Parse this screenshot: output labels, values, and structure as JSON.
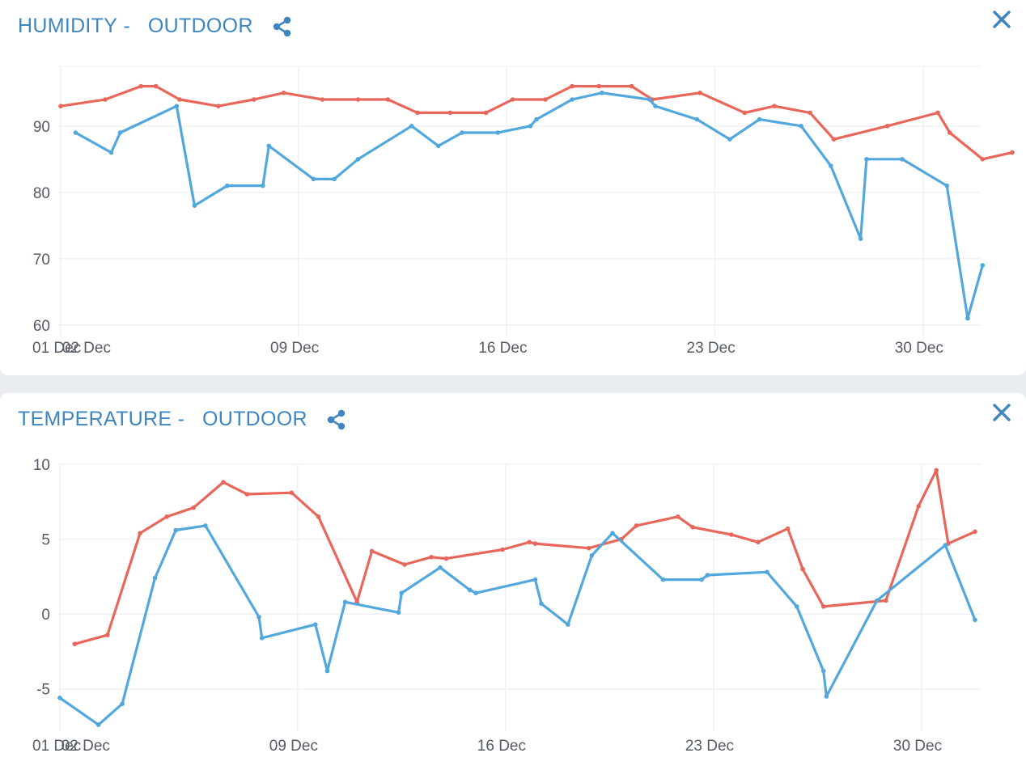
{
  "colors": {
    "accent": "#3f86c1",
    "series_a": "#e8665a",
    "series_b": "#52a8dc"
  },
  "icons": {
    "share": "share-icon",
    "close": "close-icon"
  },
  "chart_data": [
    {
      "id": "humidity",
      "type": "line",
      "header": {
        "metric": "HUMIDITY",
        "separator": " -   ",
        "location": "OUTDOOR"
      },
      "x_ticks": [
        {
          "label": "01 Dec",
          "day": 1
        },
        {
          "label": "02 Dec",
          "day": 2
        },
        {
          "label": "09 Dec",
          "day": 9
        },
        {
          "label": "16 Dec",
          "day": 16
        },
        {
          "label": "23 Dec",
          "day": 23
        },
        {
          "label": "30 Dec",
          "day": 30
        }
      ],
      "y_ticks": [
        60,
        70,
        80,
        90
      ],
      "ylim": [
        59,
        99
      ],
      "xlim_days": [
        1,
        33.2
      ],
      "series": [
        {
          "color": "#e8665a",
          "points": [
            [
              1.0,
              93
            ],
            [
              2.5,
              94
            ],
            [
              3.7,
              96
            ],
            [
              4.2,
              96
            ],
            [
              5.0,
              94
            ],
            [
              6.3,
              93
            ],
            [
              7.5,
              94
            ],
            [
              8.5,
              95
            ],
            [
              9.8,
              94
            ],
            [
              11.0,
              94
            ],
            [
              12.0,
              94
            ],
            [
              13.0,
              92
            ],
            [
              14.1,
              92
            ],
            [
              15.3,
              92
            ],
            [
              16.2,
              94
            ],
            [
              17.3,
              94
            ],
            [
              18.2,
              96
            ],
            [
              19.1,
              96
            ],
            [
              20.2,
              96
            ],
            [
              20.9,
              94
            ],
            [
              22.5,
              95
            ],
            [
              24.0,
              92
            ],
            [
              25.0,
              93
            ],
            [
              26.2,
              92
            ],
            [
              27.0,
              88
            ],
            [
              28.8,
              90
            ],
            [
              30.5,
              92
            ],
            [
              30.9,
              89
            ],
            [
              32.0,
              85
            ],
            [
              33.0,
              86
            ]
          ]
        },
        {
          "color": "#52a8dc",
          "points": [
            [
              1.5,
              89
            ],
            [
              2.7,
              86
            ],
            [
              3.0,
              89
            ],
            [
              4.9,
              93
            ],
            [
              5.5,
              78
            ],
            [
              6.6,
              81
            ],
            [
              7.8,
              81
            ],
            [
              8.0,
              87
            ],
            [
              9.5,
              82
            ],
            [
              10.2,
              82
            ],
            [
              11.0,
              85
            ],
            [
              12.8,
              90
            ],
            [
              13.7,
              87
            ],
            [
              14.5,
              89
            ],
            [
              15.7,
              89
            ],
            [
              16.8,
              90
            ],
            [
              17.0,
              91
            ],
            [
              18.2,
              94
            ],
            [
              19.2,
              95
            ],
            [
              20.8,
              94
            ],
            [
              21.0,
              93
            ],
            [
              22.4,
              91
            ],
            [
              23.5,
              88
            ],
            [
              24.5,
              91
            ],
            [
              25.9,
              90
            ],
            [
              26.9,
              84
            ],
            [
              27.9,
              73
            ],
            [
              28.1,
              85
            ],
            [
              29.3,
              85
            ],
            [
              30.8,
              81
            ],
            [
              31.5,
              61
            ],
            [
              32.0,
              69
            ]
          ]
        }
      ]
    },
    {
      "id": "temperature",
      "type": "line",
      "header": {
        "metric": "TEMPERATURE",
        "separator": " -   ",
        "location": "OUTDOOR"
      },
      "x_ticks": [
        {
          "label": "01 Dec",
          "day": 1
        },
        {
          "label": "02 Dec",
          "day": 2
        },
        {
          "label": "09 Dec",
          "day": 9
        },
        {
          "label": "16 Dec",
          "day": 16
        },
        {
          "label": "23 Dec",
          "day": 23
        },
        {
          "label": "30 Dec",
          "day": 30
        }
      ],
      "y_ticks": [
        -5,
        0,
        5,
        10
      ],
      "ylim": [
        -7.5,
        10
      ],
      "xlim_days": [
        1,
        33.2
      ],
      "series": [
        {
          "color": "#e8665a",
          "points": [
            [
              1.5,
              -2.0
            ],
            [
              2.6,
              -1.4
            ],
            [
              3.7,
              5.4
            ],
            [
              4.6,
              6.5
            ],
            [
              5.5,
              7.1
            ],
            [
              6.5,
              8.8
            ],
            [
              7.3,
              8.0
            ],
            [
              8.8,
              8.1
            ],
            [
              9.7,
              6.5
            ],
            [
              11.0,
              0.8
            ],
            [
              11.5,
              4.2
            ],
            [
              12.6,
              3.3
            ],
            [
              13.5,
              3.8
            ],
            [
              14.0,
              3.7
            ],
            [
              15.9,
              4.3
            ],
            [
              16.8,
              4.8
            ],
            [
              17.0,
              4.7
            ],
            [
              18.8,
              4.4
            ],
            [
              19.9,
              5.0
            ],
            [
              20.4,
              5.9
            ],
            [
              21.8,
              6.5
            ],
            [
              22.3,
              5.8
            ],
            [
              23.6,
              5.3
            ],
            [
              24.5,
              4.8
            ],
            [
              25.5,
              5.7
            ],
            [
              26.0,
              3.0
            ],
            [
              26.7,
              0.5
            ],
            [
              28.8,
              0.9
            ],
            [
              29.9,
              7.2
            ],
            [
              30.5,
              9.6
            ],
            [
              30.9,
              4.7
            ],
            [
              31.8,
              5.5
            ]
          ]
        },
        {
          "color": "#52a8dc",
          "points": [
            [
              1.0,
              -5.6
            ],
            [
              2.3,
              -7.4
            ],
            [
              3.1,
              -6.0
            ],
            [
              4.2,
              2.4
            ],
            [
              4.9,
              5.6
            ],
            [
              5.9,
              5.9
            ],
            [
              7.7,
              -0.2
            ],
            [
              7.8,
              -1.6
            ],
            [
              9.6,
              -0.7
            ],
            [
              10.0,
              -3.8
            ],
            [
              10.6,
              0.8
            ],
            [
              12.4,
              0.1
            ],
            [
              12.5,
              1.4
            ],
            [
              13.8,
              3.1
            ],
            [
              14.8,
              1.6
            ],
            [
              15.0,
              1.4
            ],
            [
              17.0,
              2.3
            ],
            [
              17.2,
              0.7
            ],
            [
              18.1,
              -0.7
            ],
            [
              18.9,
              3.9
            ],
            [
              19.6,
              5.4
            ],
            [
              21.3,
              2.3
            ],
            [
              22.6,
              2.3
            ],
            [
              22.8,
              2.6
            ],
            [
              24.8,
              2.8
            ],
            [
              25.8,
              0.5
            ],
            [
              26.7,
              -3.8
            ],
            [
              26.8,
              -5.5
            ],
            [
              28.5,
              0.9
            ],
            [
              30.8,
              4.6
            ],
            [
              31.8,
              -0.4
            ]
          ]
        }
      ]
    }
  ]
}
